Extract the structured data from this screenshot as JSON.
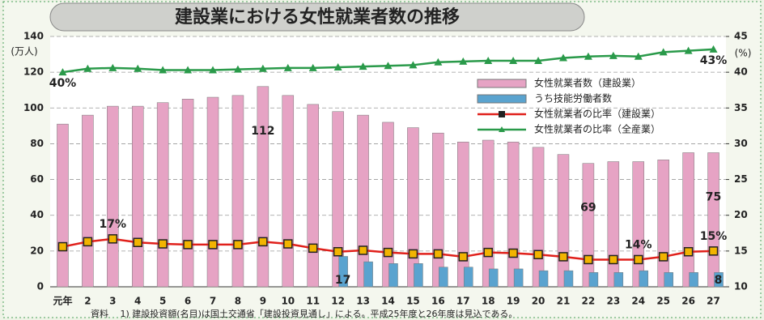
{
  "chart_data": {
    "type": "bar_line",
    "title": "建設業における女性就業者数の推移",
    "y_label": "(万人)",
    "y2_label": "(%)",
    "note": "資料　 1) 建設投資額(名目)は国土交通省「建設投資見通し」による。平成25年度と26年度は見込である。",
    "categories": [
      "元年",
      "2",
      "3",
      "4",
      "5",
      "6",
      "7",
      "8",
      "9",
      "10",
      "11",
      "12",
      "13",
      "14",
      "15",
      "16",
      "17",
      "18",
      "19",
      "20",
      "21",
      "22",
      "23",
      "24",
      "25",
      "26",
      "27"
    ],
    "ylim": [
      0,
      140
    ],
    "yticks": [
      0,
      20,
      40,
      60,
      80,
      100,
      120,
      140
    ],
    "y2lim": [
      10,
      45
    ],
    "y2ticks": [
      10,
      15,
      20,
      25,
      30,
      35,
      40,
      45
    ],
    "grid": true,
    "legend": "upper right",
    "series": [
      {
        "name": "女性就業者数（建設業）",
        "kind": "bar",
        "color": "#e6a3c4",
        "values": [
          91,
          96,
          101,
          101,
          103,
          105,
          106,
          107,
          112,
          107,
          102,
          98,
          96,
          92,
          89,
          86,
          81,
          82,
          81,
          78,
          74,
          69,
          70,
          70,
          71,
          75,
          75
        ],
        "value_labels": [
          null,
          null,
          null,
          null,
          null,
          null,
          null,
          null,
          "112",
          null,
          null,
          null,
          null,
          null,
          null,
          null,
          null,
          null,
          null,
          null,
          null,
          "69",
          null,
          null,
          null,
          null,
          "75"
        ]
      },
      {
        "name": "うち技能労働者数",
        "kind": "bar",
        "color": "#5aa3cf",
        "values": [
          null,
          null,
          null,
          null,
          null,
          null,
          null,
          null,
          null,
          null,
          null,
          17,
          14,
          13,
          13,
          11,
          11,
          10,
          10,
          9,
          9,
          8,
          8,
          9,
          8,
          8,
          8
        ],
        "value_labels": [
          null,
          null,
          null,
          null,
          null,
          null,
          null,
          null,
          null,
          null,
          null,
          "17",
          null,
          null,
          null,
          null,
          null,
          null,
          null,
          null,
          null,
          null,
          null,
          null,
          null,
          null,
          "8"
        ]
      },
      {
        "name": "女性就業者の比率（建設業）",
        "kind": "line",
        "axis": "y2",
        "color": "#e0201b",
        "marker": "square",
        "values": [
          15.6,
          16.3,
          16.7,
          16.2,
          16.0,
          15.9,
          15.9,
          15.9,
          16.3,
          16.0,
          15.4,
          14.9,
          15.1,
          14.8,
          14.6,
          14.6,
          14.2,
          14.8,
          14.7,
          14.5,
          14.2,
          13.8,
          13.8,
          13.8,
          14.2,
          14.9,
          15.0
        ],
        "value_labels": [
          null,
          null,
          "17%",
          null,
          null,
          null,
          null,
          null,
          null,
          null,
          null,
          null,
          null,
          null,
          null,
          null,
          null,
          null,
          null,
          null,
          null,
          null,
          null,
          "14%",
          null,
          null,
          "15%"
        ]
      },
      {
        "name": "女性就業者の比率（全産業）",
        "kind": "line",
        "axis": "y2",
        "color": "#2a9a4a",
        "marker": "triangle",
        "values": [
          40.0,
          40.5,
          40.6,
          40.5,
          40.3,
          40.3,
          40.3,
          40.4,
          40.5,
          40.6,
          40.6,
          40.7,
          40.8,
          40.9,
          41.0,
          41.4,
          41.5,
          41.6,
          41.6,
          41.6,
          42.0,
          42.2,
          42.3,
          42.2,
          42.8,
          43.0,
          43.2
        ],
        "value_labels": [
          "40%",
          null,
          null,
          null,
          null,
          null,
          null,
          null,
          null,
          null,
          null,
          null,
          null,
          null,
          null,
          null,
          null,
          null,
          null,
          null,
          null,
          null,
          null,
          null,
          null,
          null,
          "43%"
        ]
      }
    ]
  }
}
